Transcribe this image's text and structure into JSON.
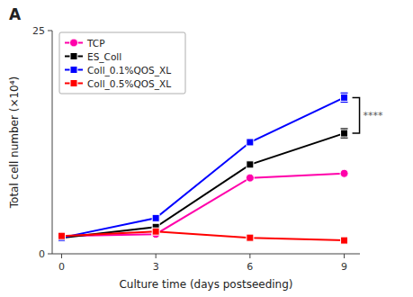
{
  "chart_data": {
    "type": "line",
    "title": "A",
    "x": [
      0,
      3,
      6,
      9
    ],
    "series": [
      {
        "name": "TCP",
        "color": "#FF00AA",
        "marker": "circle",
        "line_style": "solid",
        "values": [
          2.0,
          2.2,
          8.5,
          9.0
        ]
      },
      {
        "name": "ES_Coll",
        "color": "#000000",
        "marker": "square",
        "line_style": "solid",
        "values": [
          1.8,
          3.0,
          10.0,
          13.5
        ],
        "errors": [
          null,
          null,
          null,
          0.5
        ]
      },
      {
        "name": "Coll_0.1%QOS_XL",
        "color": "#0000FF",
        "marker": "square",
        "line_style": "solid",
        "values": [
          1.8,
          4.0,
          12.5,
          17.5
        ],
        "errors": [
          null,
          null,
          null,
          0.5
        ]
      },
      {
        "name": "Coll_0.5%QOS_XL",
        "color": "#FF0000",
        "marker": "square",
        "line_style": "solid",
        "values": [
          2.0,
          2.5,
          1.8,
          1.5
        ]
      }
    ],
    "xlabel": "Culture time (days postseeding)",
    "ylabel": "Total cell number (×10⁴)",
    "xlim": [
      -0.3,
      9.5
    ],
    "xticks": [
      0,
      3,
      6,
      9
    ],
    "ylim": [
      0,
      25
    ],
    "yticks": [
      0,
      25
    ],
    "annotations": [
      {
        "text": "****",
        "y_from": 13.5,
        "y_to": 17.5
      }
    ],
    "legend": "upper left",
    "grid": false
  }
}
